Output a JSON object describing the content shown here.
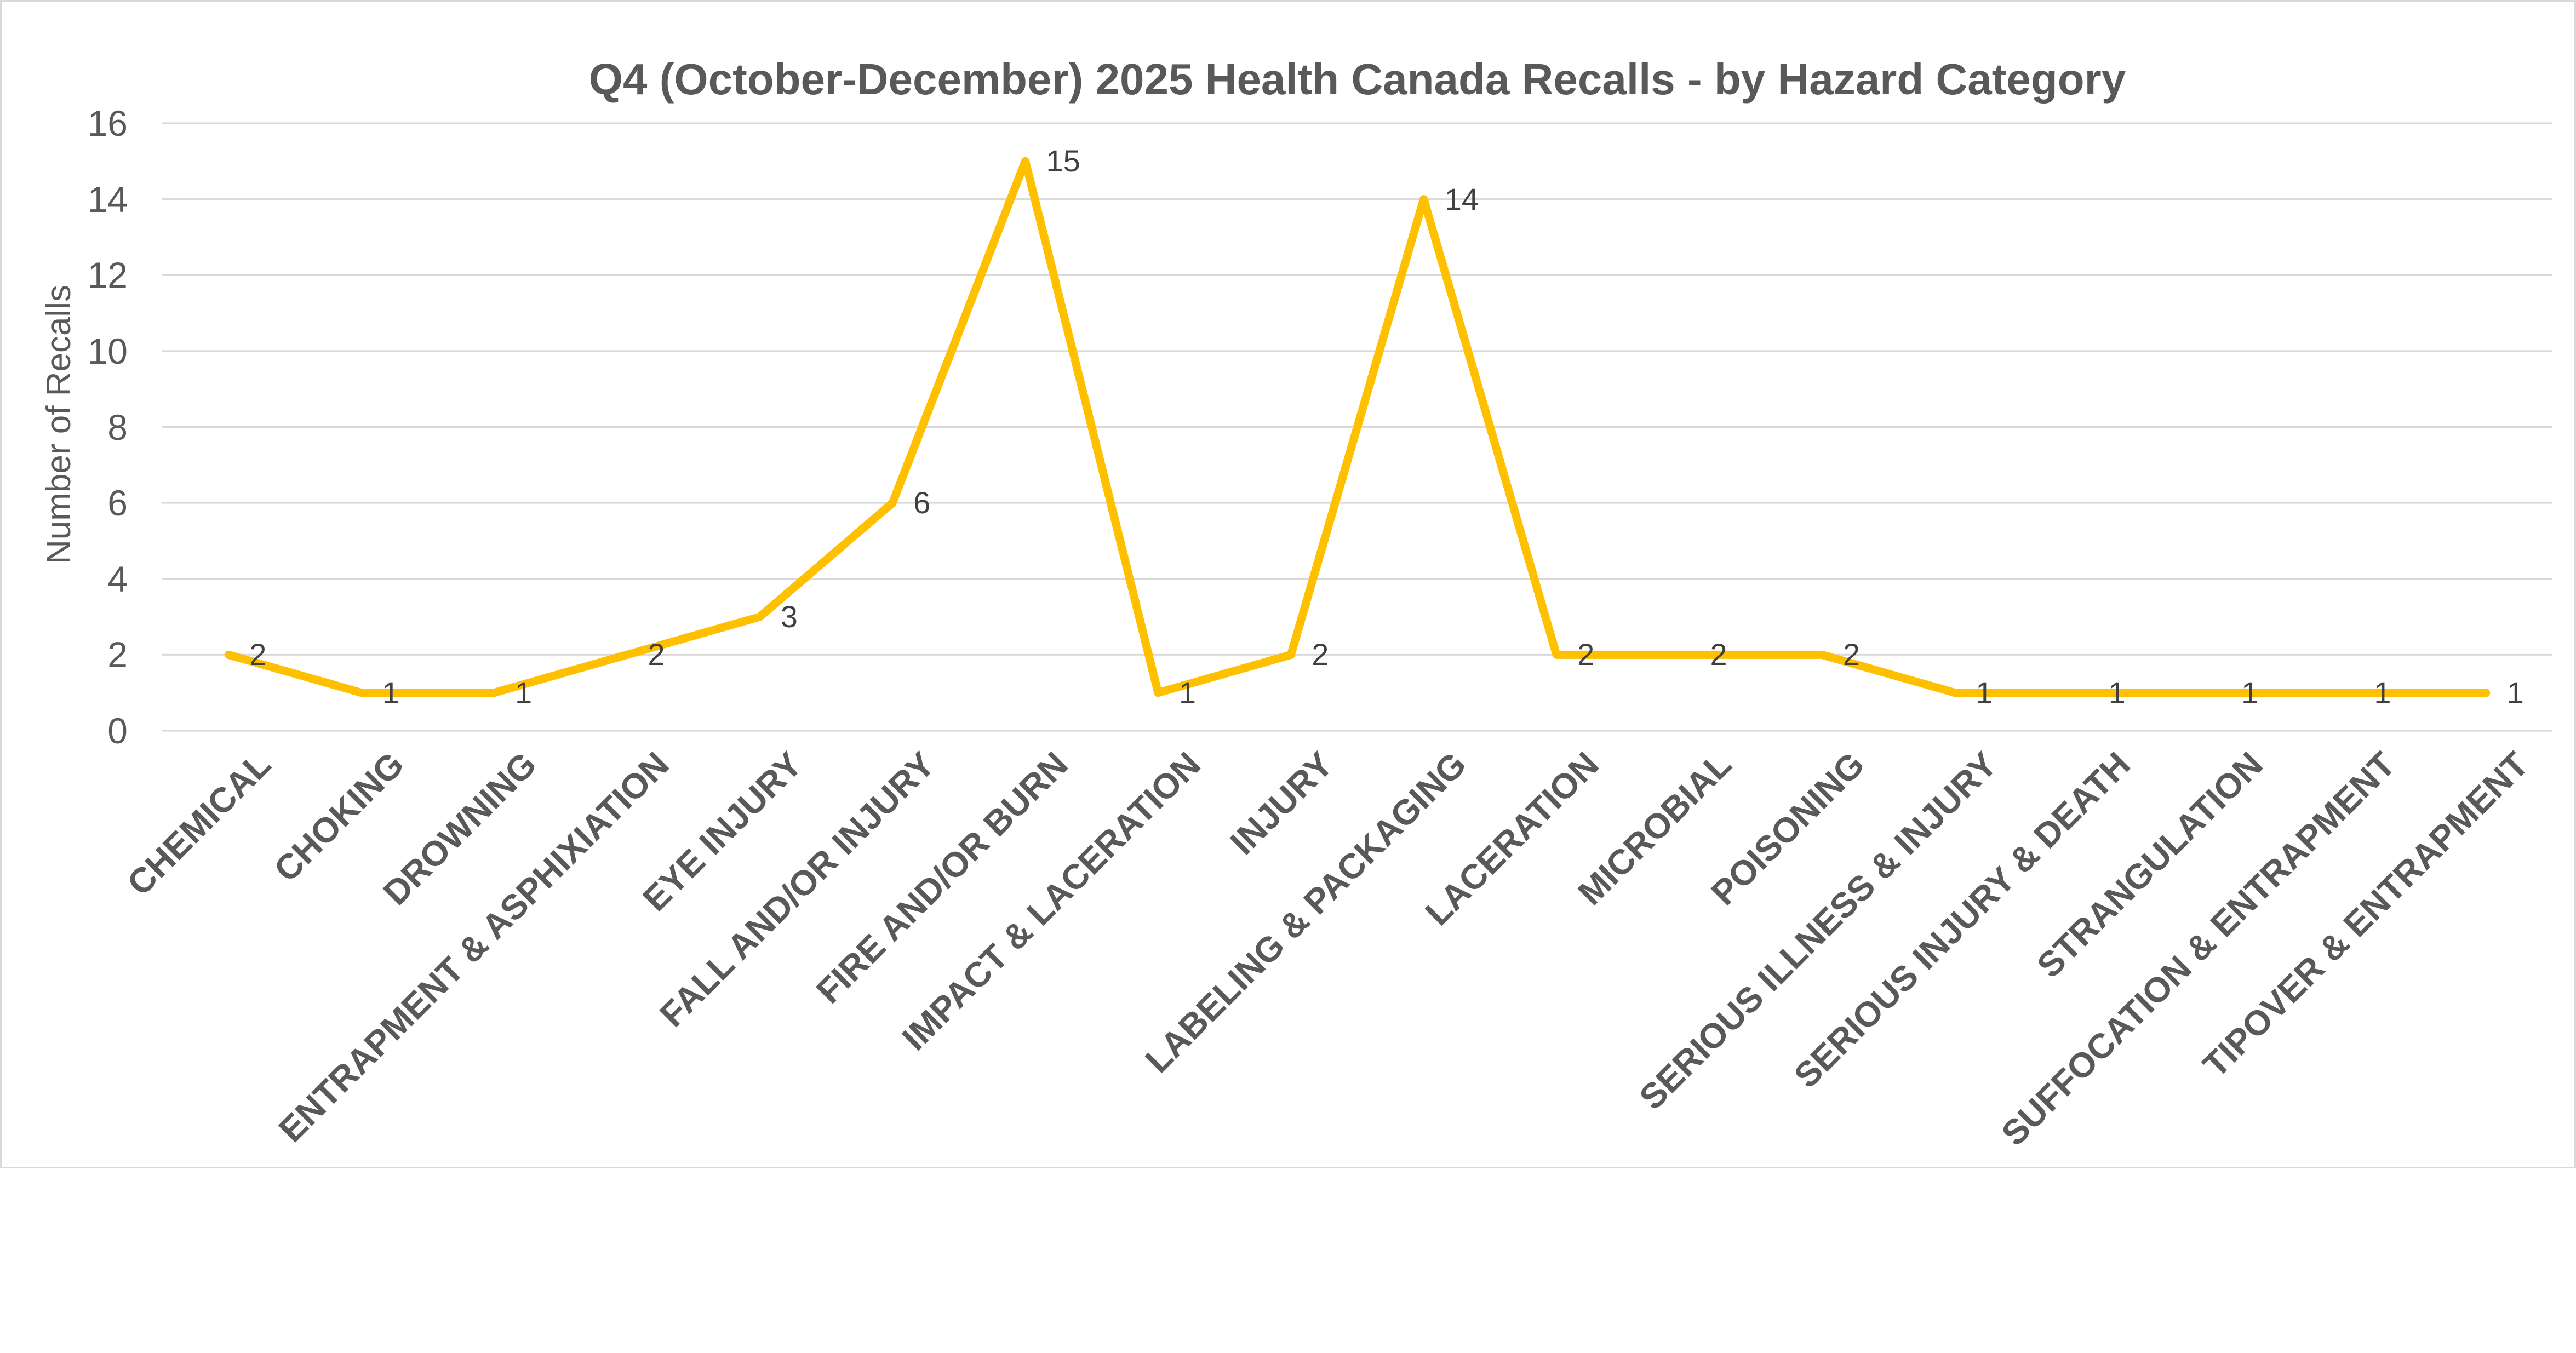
{
  "chart_data": {
    "type": "line",
    "title": "Q4 (October-December) 2025 Health Canada Recalls - by Hazard Category",
    "xlabel": "",
    "ylabel": "Number of Recalls",
    "categories": [
      "CHEMICAL",
      "CHOKING",
      "DROWNING",
      "ENTRAPMENT & ASPHIXIATION",
      "EYE INJURY",
      "FALL AND/OR INJURY",
      "FIRE AND/OR BURN",
      "IMPACT & LACERATION",
      "INJURY",
      "LABELING & PACKAGING",
      "LACERATION",
      "MICROBIAL",
      "POISONING",
      "SERIOUS ILLNESS & INJURY",
      "SERIOUS INJURY & DEATH",
      "STRANGULATION",
      "SUFFOCATION & ENTRAPMENT",
      "TIPOVER & ENTRAPMENT"
    ],
    "values": [
      2,
      1,
      1,
      2,
      3,
      6,
      15,
      1,
      2,
      14,
      2,
      2,
      2,
      1,
      1,
      1,
      1,
      1
    ],
    "ylim": [
      0,
      16
    ],
    "yticks": [
      0,
      2,
      4,
      6,
      8,
      10,
      12,
      14,
      16
    ],
    "grid": true,
    "legend": "none",
    "data_labels": true,
    "colors": {
      "line": "#FFC000",
      "title_text": "#595959",
      "axis_text": "#595959",
      "data_label_text": "#404040",
      "gridline": "#D9D9D9",
      "border": "#D9D9D9",
      "background": "#FFFFFF"
    }
  }
}
